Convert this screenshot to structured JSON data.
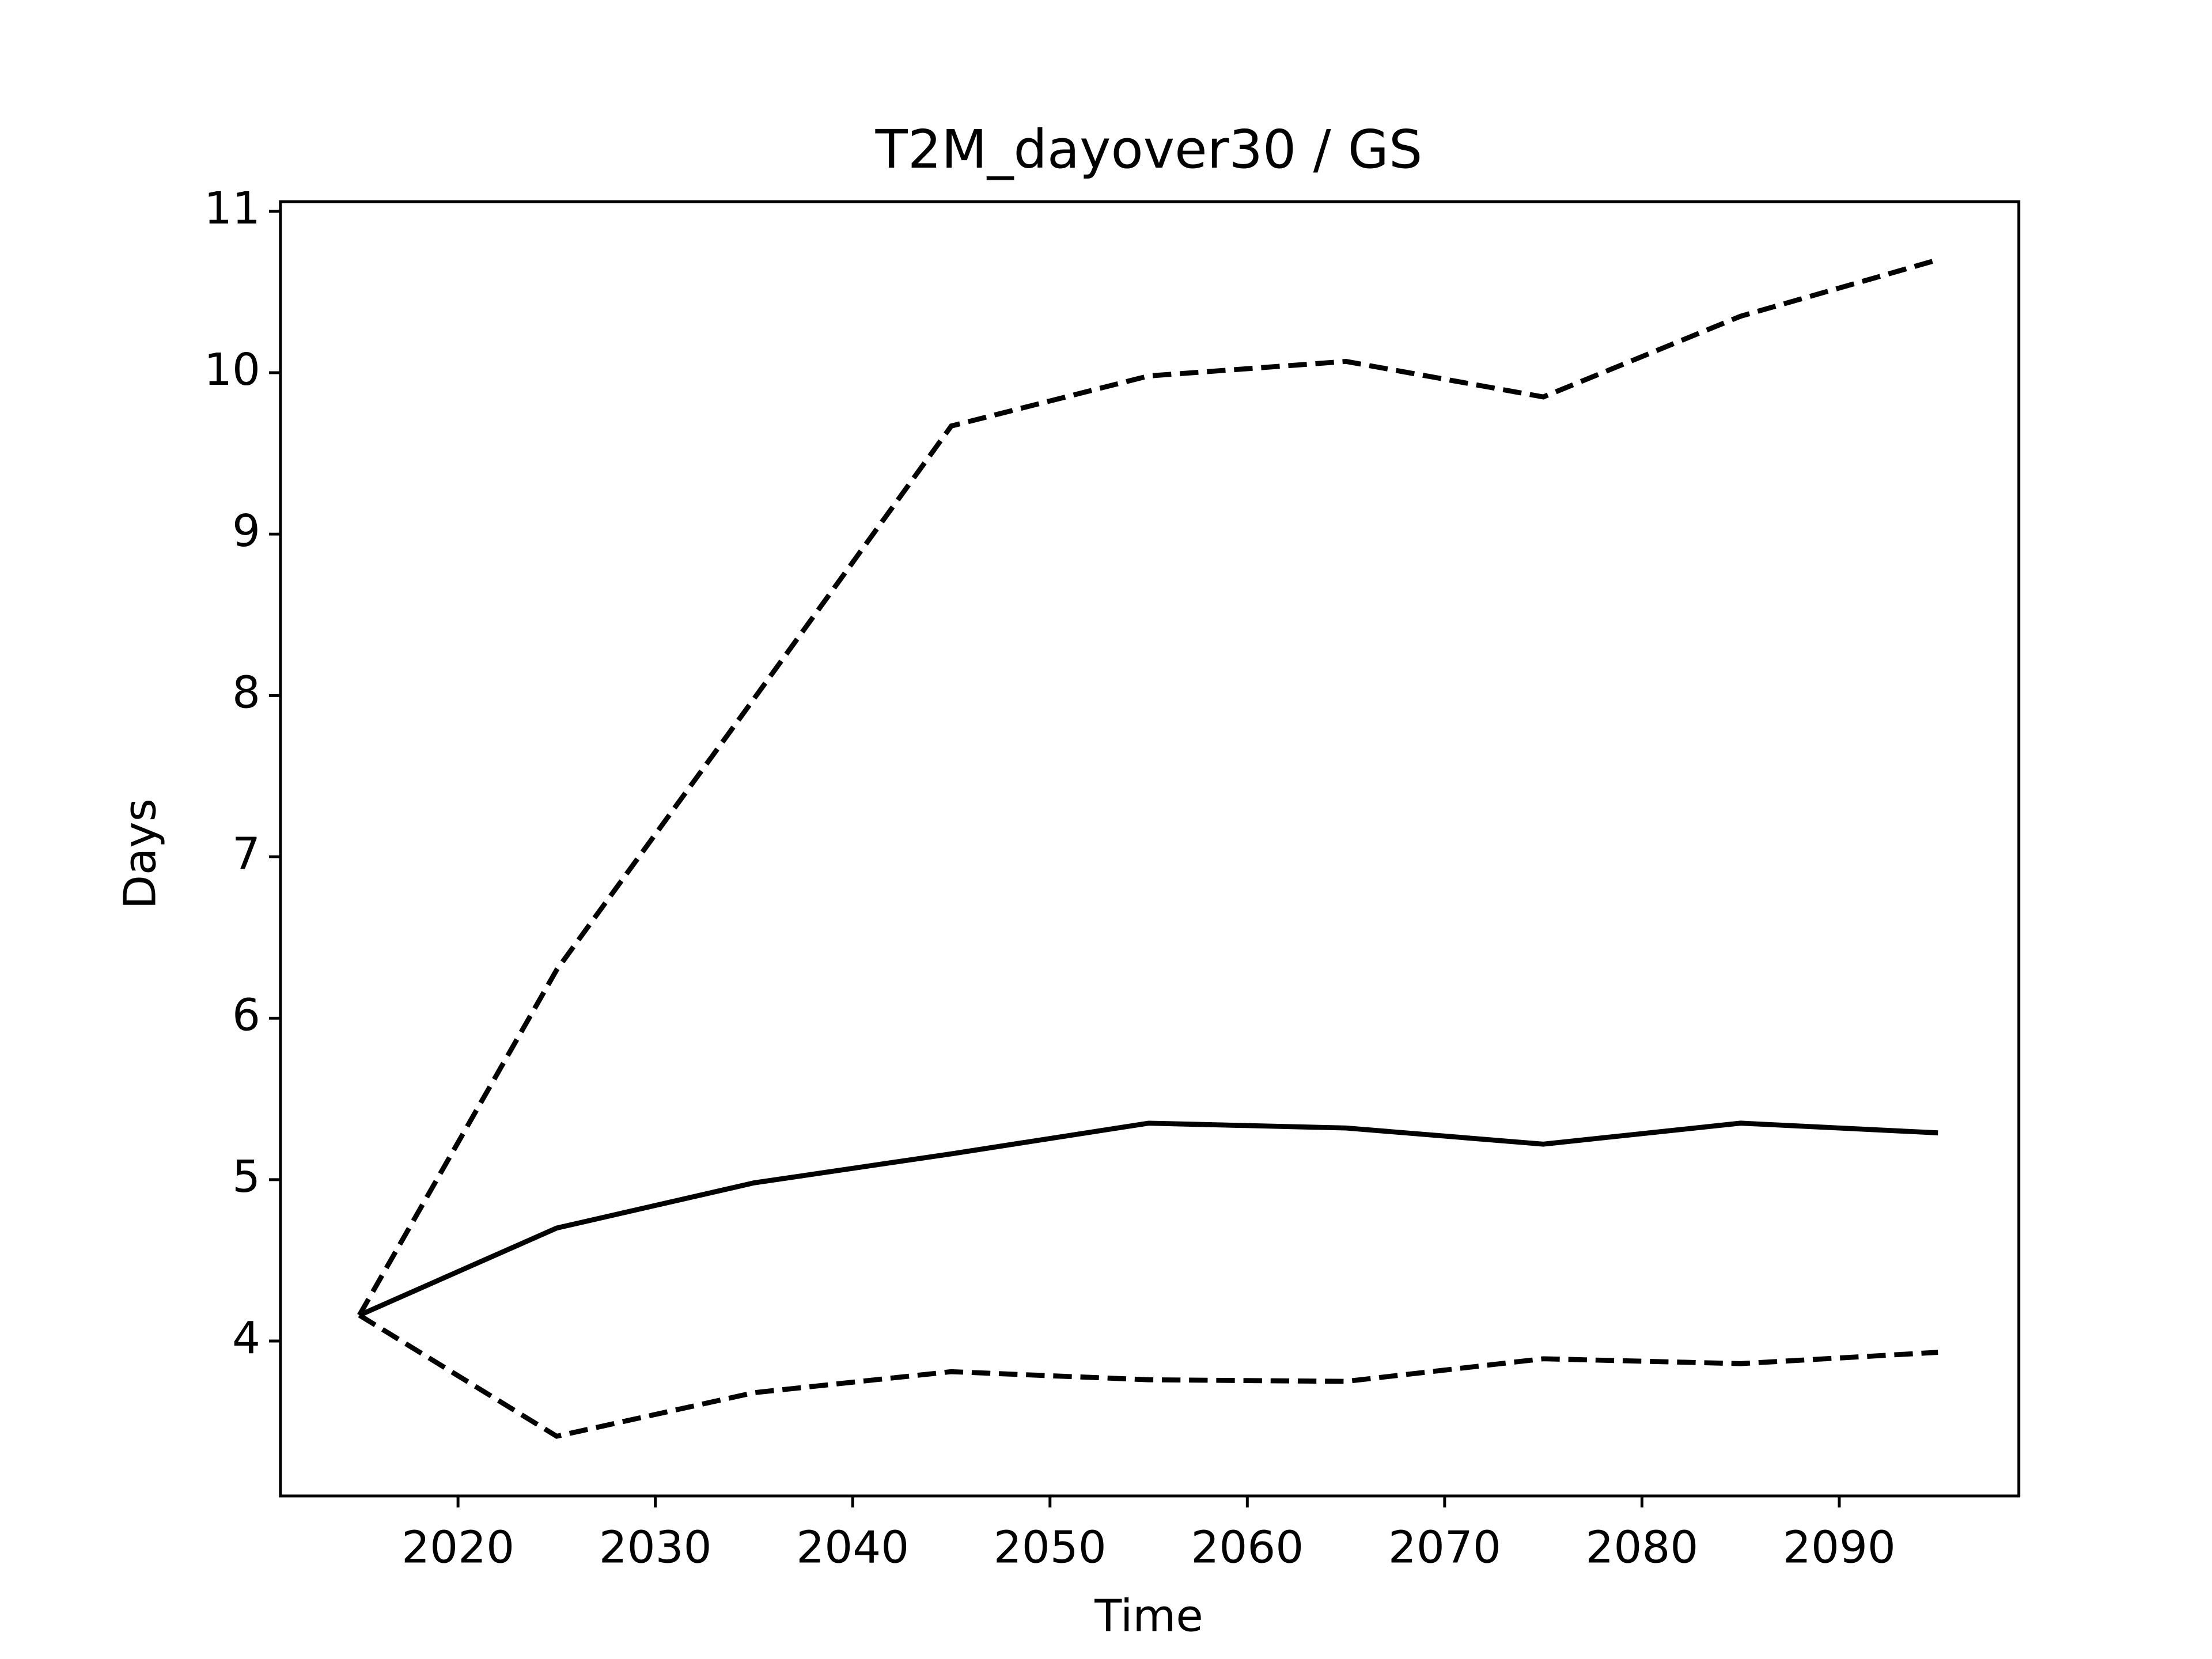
{
  "chart_data": {
    "type": "line",
    "title": "T2M_dayover30 / GS",
    "x_label": "Time",
    "y_label": "Days",
    "x": [
      2015,
      2025,
      2035,
      2045,
      2055,
      2065,
      2075,
      2085,
      2095
    ],
    "series": [
      {
        "color": "#000000",
        "line_style": "solid",
        "values": [
          4.16,
          4.7,
          4.98,
          5.16,
          5.35,
          5.32,
          5.22,
          5.35,
          5.29
        ]
      },
      {
        "color": "#000000",
        "line_style": "dashed",
        "values": [
          4.16,
          6.3,
          7.98,
          9.67,
          9.98,
          10.07,
          9.85,
          10.35,
          10.7
        ]
      },
      {
        "color": "#000000",
        "line_style": "dashed",
        "values": [
          4.16,
          3.41,
          3.68,
          3.81,
          3.76,
          3.75,
          3.89,
          3.86,
          3.93
        ]
      }
    ],
    "xlim": [
      2011,
      2099.1
    ],
    "xticks": [
      2020,
      2030,
      2040,
      2050,
      2060,
      2070,
      2080,
      2090
    ],
    "ylim": [
      3.04,
      11.06
    ],
    "yticks": [
      4,
      5,
      6,
      7,
      8,
      9,
      10,
      11
    ],
    "grid": false
  }
}
